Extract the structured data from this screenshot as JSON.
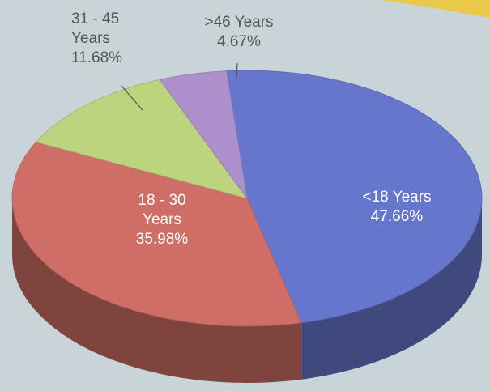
{
  "chart_data": {
    "type": "pie",
    "categories": [
      "<18 Years",
      "18 - 30 Years",
      "31 - 45 Years",
      ">46 Years"
    ],
    "values": [
      47.66,
      35.98,
      11.68,
      4.67
    ],
    "value_labels": [
      "47.66%",
      "35.98%",
      "11.68%",
      "4.67%"
    ],
    "colors": [
      "#6676cc",
      "#cf6e66",
      "#bcd47e",
      "#ad8fcc"
    ]
  }
}
